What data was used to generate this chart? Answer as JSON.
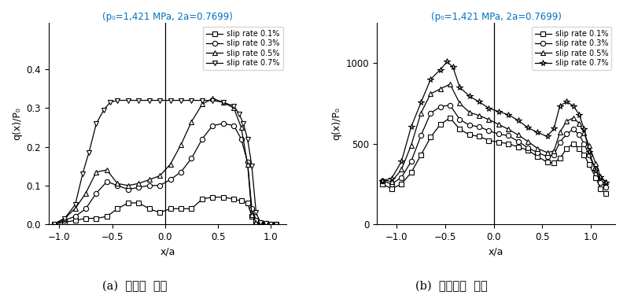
{
  "title_text": "(p₀=1,421 MPa, 2a=0.7699)",
  "title_color": "#0070C0",
  "xlabel": "x/a",
  "ylabel_left": "q(x)/P₀",
  "ylabel_right": "q(x)/P₀",
  "subtitle_a": "(a)  접선력  변화",
  "subtitle_b": "(b)  접촉응력  변화",
  "legend_labels": [
    "slip rate 0.1%",
    "slip rate 0.3%",
    "slip rate 0.5%",
    "slip rate 0.7%"
  ],
  "markers_left": [
    "s",
    "o",
    "^",
    "v"
  ],
  "markers_right": [
    "s",
    "o",
    "^",
    "*"
  ],
  "left": {
    "xlim": [
      -1.1,
      1.15
    ],
    "ylim": [
      0.0,
      0.52
    ],
    "yticks": [
      0.0,
      0.1,
      0.2,
      0.3,
      0.4
    ],
    "xticks": [
      -1.0,
      -0.5,
      0.0,
      0.5,
      1.0
    ],
    "series": [
      {
        "x": [
          -1.05,
          -0.95,
          -0.85,
          -0.75,
          -0.65,
          -0.55,
          -0.45,
          -0.35,
          -0.25,
          -0.15,
          -0.05,
          0.05,
          0.15,
          0.25,
          0.35,
          0.45,
          0.55,
          0.65,
          0.72,
          0.78,
          0.82,
          0.86,
          0.9,
          0.95,
          1.0,
          1.05
        ],
        "y": [
          0.0,
          0.005,
          0.01,
          0.015,
          0.015,
          0.02,
          0.04,
          0.055,
          0.055,
          0.04,
          0.03,
          0.04,
          0.04,
          0.04,
          0.065,
          0.07,
          0.07,
          0.065,
          0.06,
          0.055,
          0.02,
          0.005,
          0.002,
          0.001,
          0.0,
          0.0
        ]
      },
      {
        "x": [
          -1.05,
          -0.95,
          -0.85,
          -0.75,
          -0.65,
          -0.55,
          -0.45,
          -0.35,
          -0.25,
          -0.15,
          -0.05,
          0.05,
          0.15,
          0.25,
          0.35,
          0.45,
          0.55,
          0.65,
          0.72,
          0.78,
          0.82,
          0.86,
          0.9,
          0.95,
          1.0,
          1.05
        ],
        "y": [
          0.0,
          0.01,
          0.02,
          0.04,
          0.08,
          0.11,
          0.1,
          0.09,
          0.095,
          0.1,
          0.1,
          0.115,
          0.135,
          0.17,
          0.22,
          0.255,
          0.26,
          0.255,
          0.22,
          0.16,
          0.04,
          0.01,
          0.003,
          0.001,
          0.0,
          0.0
        ]
      },
      {
        "x": [
          -1.05,
          -0.95,
          -0.85,
          -0.75,
          -0.65,
          -0.55,
          -0.45,
          -0.35,
          -0.25,
          -0.15,
          -0.05,
          0.05,
          0.15,
          0.25,
          0.35,
          0.45,
          0.55,
          0.65,
          0.72,
          0.78,
          0.82,
          0.86,
          0.9,
          0.95,
          1.0,
          1.05
        ],
        "y": [
          0.0,
          0.015,
          0.04,
          0.08,
          0.135,
          0.14,
          0.105,
          0.1,
          0.105,
          0.115,
          0.125,
          0.155,
          0.205,
          0.265,
          0.31,
          0.325,
          0.315,
          0.3,
          0.25,
          0.155,
          0.025,
          0.005,
          0.001,
          0.0,
          0.0,
          0.0
        ]
      },
      {
        "x": [
          -1.05,
          -0.95,
          -0.85,
          -0.78,
          -0.72,
          -0.65,
          -0.58,
          -0.52,
          -0.45,
          -0.35,
          -0.25,
          -0.15,
          -0.05,
          0.05,
          0.15,
          0.25,
          0.35,
          0.45,
          0.55,
          0.65,
          0.7,
          0.74,
          0.78,
          0.82,
          0.86,
          0.9,
          0.95,
          1.0,
          1.05
        ],
        "y": [
          0.0,
          0.015,
          0.05,
          0.13,
          0.185,
          0.26,
          0.295,
          0.315,
          0.32,
          0.32,
          0.32,
          0.32,
          0.32,
          0.32,
          0.32,
          0.32,
          0.32,
          0.32,
          0.315,
          0.305,
          0.285,
          0.26,
          0.22,
          0.15,
          0.03,
          0.005,
          0.001,
          0.0,
          0.0
        ]
      }
    ]
  },
  "right": {
    "xlim": [
      -1.2,
      1.25
    ],
    "ylim": [
      0,
      1250
    ],
    "yticks": [
      0,
      500,
      1000
    ],
    "xticks": [
      -1.0,
      -0.5,
      0.0,
      0.5,
      1.0
    ],
    "series": [
      {
        "x": [
          -1.15,
          -1.05,
          -0.95,
          -0.85,
          -0.75,
          -0.65,
          -0.55,
          -0.45,
          -0.35,
          -0.25,
          -0.15,
          -0.05,
          0.05,
          0.15,
          0.25,
          0.35,
          0.45,
          0.55,
          0.62,
          0.68,
          0.75,
          0.82,
          0.88,
          0.93,
          0.98,
          1.05,
          1.1,
          1.15
        ],
        "y": [
          250,
          220,
          250,
          320,
          430,
          540,
          620,
          660,
          590,
          555,
          545,
          520,
          510,
          500,
          480,
          460,
          420,
          385,
          380,
          410,
          470,
          500,
          470,
          430,
          370,
          290,
          220,
          190
        ]
      },
      {
        "x": [
          -1.15,
          -1.05,
          -0.95,
          -0.85,
          -0.75,
          -0.65,
          -0.55,
          -0.45,
          -0.35,
          -0.25,
          -0.15,
          -0.05,
          0.05,
          0.15,
          0.25,
          0.35,
          0.45,
          0.55,
          0.62,
          0.68,
          0.75,
          0.82,
          0.88,
          0.93,
          0.98,
          1.05,
          1.1,
          1.15
        ],
        "y": [
          270,
          250,
          290,
          390,
          550,
          690,
          730,
          740,
          650,
          615,
          605,
          580,
          560,
          550,
          515,
          475,
          445,
          420,
          430,
          510,
          560,
          590,
          555,
          500,
          430,
          340,
          260,
          230
        ]
      },
      {
        "x": [
          -1.15,
          -1.05,
          -0.95,
          -0.85,
          -0.75,
          -0.65,
          -0.55,
          -0.45,
          -0.35,
          -0.25,
          -0.15,
          -0.05,
          0.05,
          0.15,
          0.25,
          0.35,
          0.45,
          0.55,
          0.62,
          0.68,
          0.75,
          0.82,
          0.88,
          0.93,
          0.98,
          1.05,
          1.1,
          1.15
        ],
        "y": [
          275,
          265,
          340,
          490,
          690,
          810,
          840,
          870,
          750,
          695,
          675,
          650,
          620,
          590,
          555,
          515,
          470,
          445,
          455,
          570,
          640,
          660,
          625,
          565,
          490,
          375,
          295,
          265
        ]
      },
      {
        "x": [
          -1.15,
          -1.05,
          -0.95,
          -0.85,
          -0.75,
          -0.65,
          -0.55,
          -0.48,
          -0.42,
          -0.35,
          -0.25,
          -0.15,
          -0.05,
          0.05,
          0.15,
          0.25,
          0.35,
          0.45,
          0.55,
          0.62,
          0.68,
          0.75,
          0.82,
          0.88,
          0.93,
          0.98,
          1.05,
          1.1,
          1.15
        ],
        "y": [
          270,
          285,
          390,
          605,
          755,
          900,
          960,
          1010,
          975,
          850,
          795,
          760,
          720,
          700,
          680,
          645,
          600,
          570,
          545,
          595,
          735,
          760,
          735,
          680,
          590,
          450,
          330,
          295,
          260
        ]
      }
    ]
  }
}
